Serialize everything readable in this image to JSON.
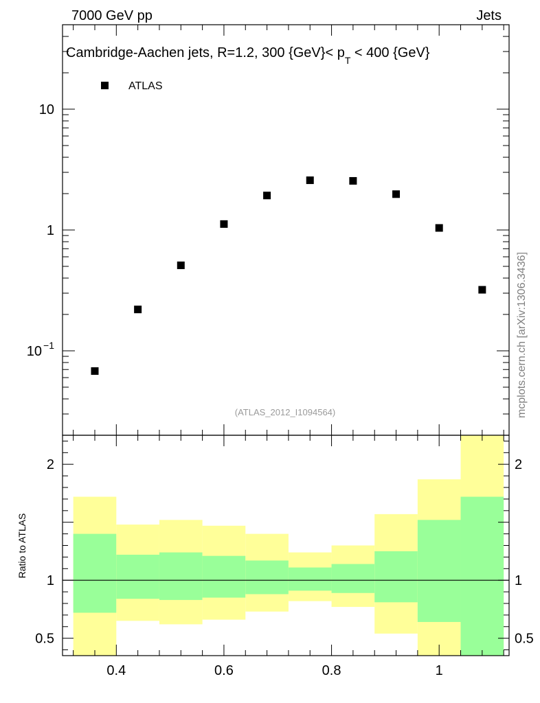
{
  "header": {
    "energy_label": "7000 GeV pp",
    "category_label": "Jets"
  },
  "side_label": "mcplots.cern.ch [arXiv:1306.3436]",
  "chart_data": [
    {
      "type": "scatter",
      "title_prefix": "Cambridge-Aachen jets, R=1.2,  300 {GeV}< p",
      "title_sub": "T",
      "title_suffix": " < 400 {GeV}",
      "analysis_id": "(ATLAS_2012_I1094564)",
      "legend": [
        "ATLAS"
      ],
      "yscale": "log",
      "ylim": [
        0.02,
        50
      ],
      "xlim": [
        0.3,
        1.13
      ],
      "x_ticks": [
        "0.4",
        "0.6",
        "0.8",
        "1"
      ],
      "y_ticks": [
        {
          "value": 10,
          "base": "10",
          "exp": ""
        },
        {
          "value": 1,
          "base": "1",
          "exp": ""
        },
        {
          "value": 0.1,
          "base": "10",
          "exp": "−1"
        }
      ],
      "series": [
        {
          "name": "ATLAS",
          "x": [
            0.36,
            0.44,
            0.52,
            0.6,
            0.68,
            0.76,
            0.84,
            0.92,
            1.0,
            1.08
          ],
          "y": [
            0.068,
            0.22,
            0.51,
            1.12,
            1.93,
            2.58,
            2.55,
            1.98,
            1.04,
            0.32
          ]
        }
      ]
    },
    {
      "type": "area",
      "ylabel": "Ratio to ATLAS",
      "xlim": [
        0.3,
        1.13
      ],
      "ylim": [
        0.35,
        2.25
      ],
      "y_ticks": [
        "2",
        "1",
        "0.5"
      ],
      "reference_line": 1,
      "bins": [
        {
          "lo": 0.32,
          "hi": 0.4,
          "inner": [
            0.72,
            1.4
          ],
          "outer": [
            0.35,
            1.72
          ]
        },
        {
          "lo": 0.4,
          "hi": 0.48,
          "inner": [
            0.84,
            1.22
          ],
          "outer": [
            0.65,
            1.48
          ]
        },
        {
          "lo": 0.48,
          "hi": 0.56,
          "inner": [
            0.83,
            1.24
          ],
          "outer": [
            0.62,
            1.52
          ]
        },
        {
          "lo": 0.56,
          "hi": 0.64,
          "inner": [
            0.85,
            1.21
          ],
          "outer": [
            0.66,
            1.47
          ]
        },
        {
          "lo": 0.64,
          "hi": 0.72,
          "inner": [
            0.88,
            1.17
          ],
          "outer": [
            0.73,
            1.4
          ]
        },
        {
          "lo": 0.72,
          "hi": 0.8,
          "inner": [
            0.91,
            1.11
          ],
          "outer": [
            0.82,
            1.24
          ]
        },
        {
          "lo": 0.8,
          "hi": 0.88,
          "inner": [
            0.89,
            1.14
          ],
          "outer": [
            0.77,
            1.3
          ]
        },
        {
          "lo": 0.88,
          "hi": 0.96,
          "inner": [
            0.81,
            1.25
          ],
          "outer": [
            0.54,
            1.57
          ]
        },
        {
          "lo": 0.96,
          "hi": 1.04,
          "inner": [
            0.64,
            1.52
          ],
          "outer": [
            0.35,
            1.87
          ]
        },
        {
          "lo": 1.04,
          "hi": 1.12,
          "inner": [
            0.35,
            1.72
          ],
          "outer": [
            0.35,
            2.26
          ]
        }
      ],
      "colors": {
        "inner": "#99ff99",
        "outer": "#ffff99"
      }
    }
  ]
}
